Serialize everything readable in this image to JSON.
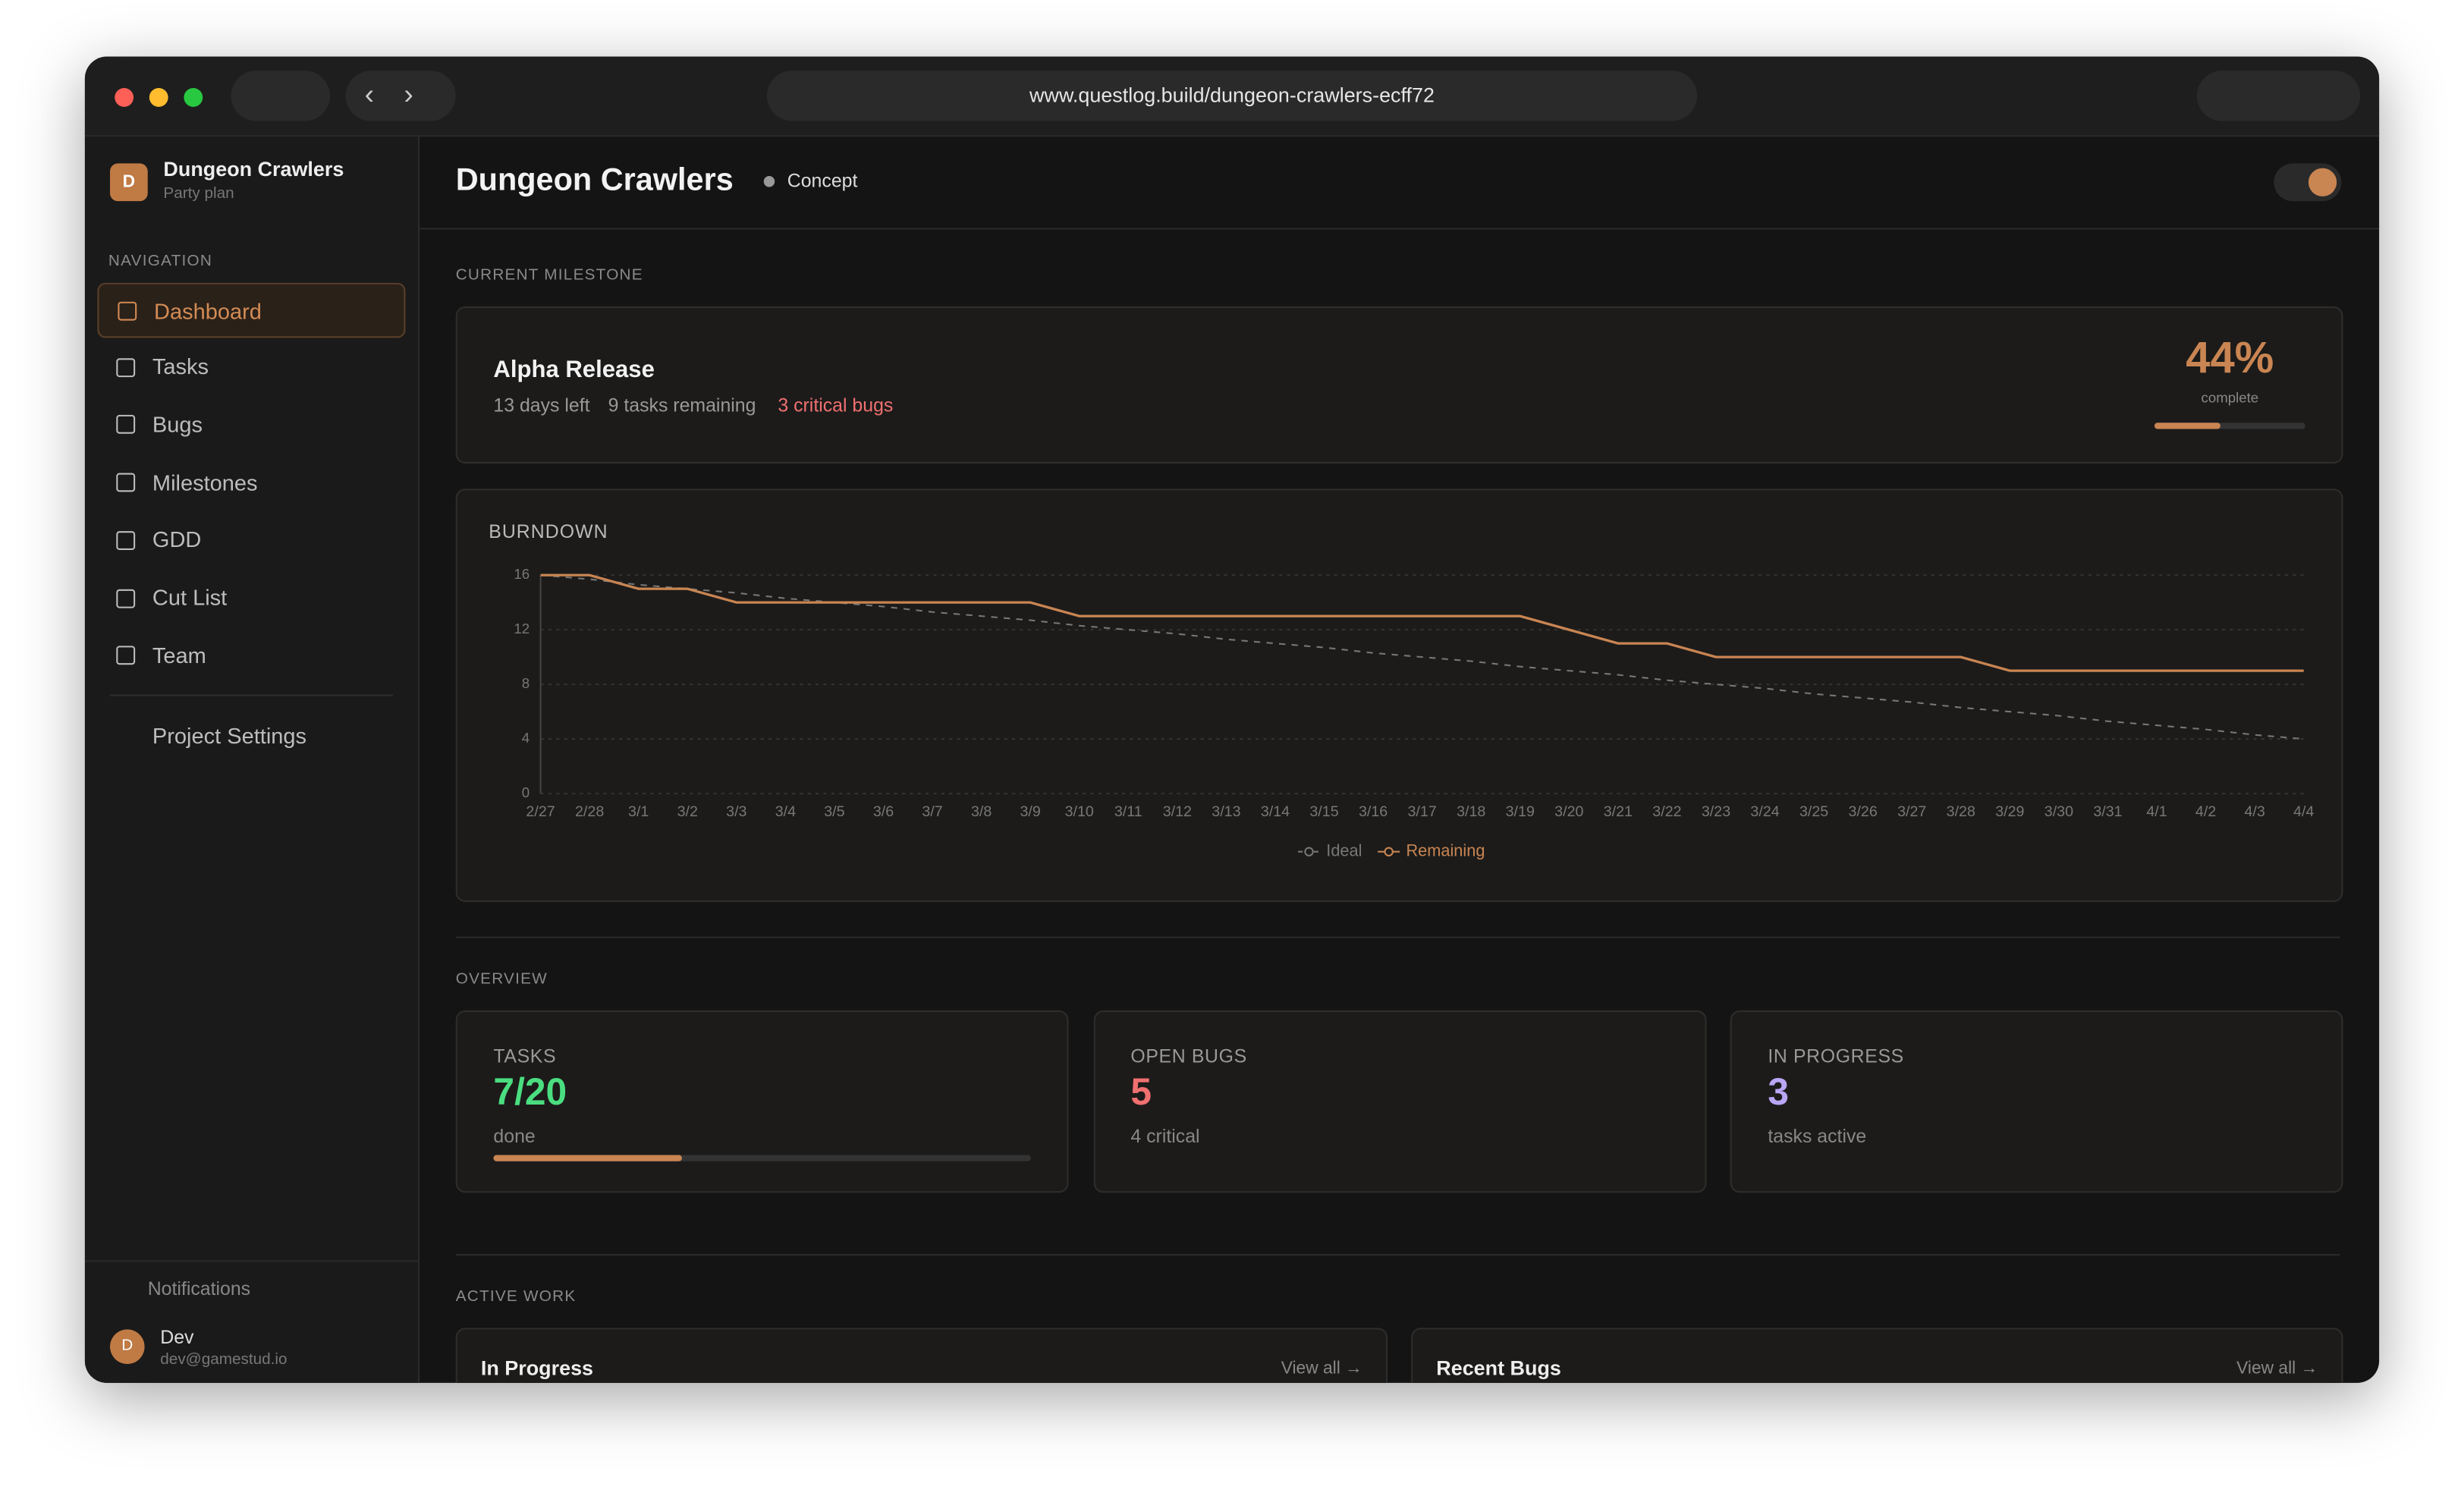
{
  "browser": {
    "url": "www.questlog.build/dungeon-crawlers-ecff72"
  },
  "sidebar": {
    "project": {
      "initial": "D",
      "name": "Dungeon Crawlers",
      "plan": "Party plan"
    },
    "nav_heading": "NAVIGATION",
    "nav": [
      "Dashboard",
      "Tasks",
      "Bugs",
      "Milestones",
      "GDD",
      "Cut List",
      "Team"
    ],
    "settings": "Project Settings",
    "notifications": "Notifications",
    "user": {
      "initial": "D",
      "name": "Dev",
      "email": "dev@gamestud.io"
    }
  },
  "header": {
    "title": "Dungeon Crawlers",
    "status": "Concept"
  },
  "milestone": {
    "heading": "CURRENT MILESTONE",
    "name": "Alpha Release",
    "days": "13 days left",
    "tasks": "9 tasks remaining",
    "bugs": "3 critical bugs",
    "complete": {
      "value": 44,
      "label": "44%"
    },
    "complete_text": "complete"
  },
  "chart_data": {
    "type": "line",
    "title": "BURNDOWN",
    "x": [
      "2/27",
      "2/28",
      "3/1",
      "3/2",
      "3/3",
      "3/4",
      "3/5",
      "3/6",
      "3/7",
      "3/8",
      "3/9",
      "3/10",
      "3/11",
      "3/12",
      "3/13",
      "3/14",
      "3/15",
      "3/16",
      "3/17",
      "3/18",
      "3/19",
      "3/20",
      "3/21",
      "3/22",
      "3/23",
      "3/24",
      "3/25",
      "3/26",
      "3/27",
      "3/28",
      "3/29",
      "3/30",
      "3/31",
      "4/1",
      "4/2",
      "4/3",
      "4/4"
    ],
    "series": [
      {
        "name": "Ideal",
        "color": "#777777",
        "dashed": true,
        "values": [
          16,
          15.7,
          15.3,
          15,
          14.7,
          14.3,
          14,
          13.7,
          13.3,
          13,
          12.7,
          12.3,
          12,
          11.7,
          11.3,
          11,
          10.7,
          10.3,
          10,
          9.7,
          9.3,
          9,
          8.7,
          8.3,
          8,
          7.7,
          7.3,
          7,
          6.7,
          6.3,
          6,
          5.7,
          5.3,
          5,
          4.7,
          4.3,
          4
        ]
      },
      {
        "name": "Remaining",
        "color": "#c98552",
        "values": [
          16,
          16,
          15,
          15,
          14,
          14,
          14,
          14,
          14,
          14,
          14,
          13,
          13,
          13,
          13,
          13,
          13,
          13,
          13,
          13,
          13,
          12,
          11,
          11,
          10,
          10,
          10,
          10,
          10,
          10,
          9,
          9,
          9,
          9,
          9,
          9,
          9
        ]
      }
    ],
    "ylim": [
      0,
      16
    ],
    "yticks": [
      0,
      4,
      8,
      12,
      16
    ],
    "grid": true,
    "legend": "bottom"
  },
  "overview": {
    "heading": "OVERVIEW",
    "cards": [
      {
        "label": "TASKS",
        "value": "7/20",
        "sub": "done",
        "color": "#4ade80"
      },
      {
        "label": "OPEN BUGS",
        "value": "5",
        "sub": "4 critical",
        "color": "#f07070"
      },
      {
        "label": "IN PROGRESS",
        "value": "3",
        "sub": "tasks active",
        "color": "#b9a6f5"
      }
    ]
  },
  "active_work": {
    "heading": "ACTIVE WORK",
    "panels": [
      {
        "title": "In Progress",
        "link": "View all →"
      },
      {
        "title": "Recent Bugs",
        "link": "View all →"
      }
    ]
  }
}
